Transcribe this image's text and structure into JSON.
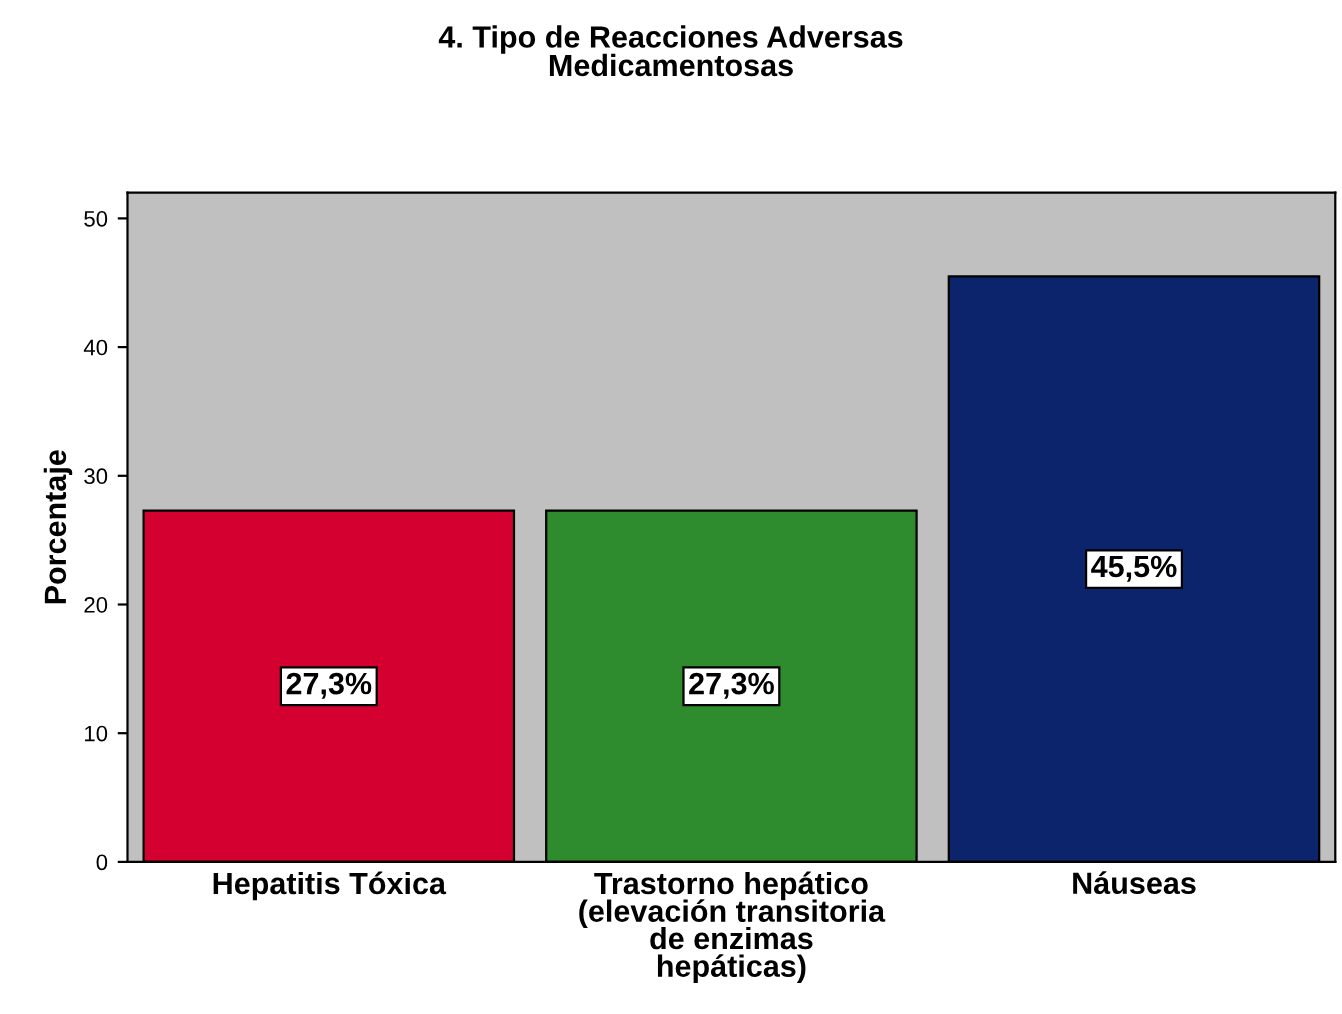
{
  "chart_data": {
    "type": "bar",
    "title": "4. Tipo de Reacciones Adversas\nMedicamentosas",
    "ylabel": "Porcentaje",
    "categories": [
      "Hepatitis Tóxica",
      "Trastorno hepático\n(elevación transitoria\nde enzimas\nhepáticas)",
      "Náuseas"
    ],
    "values": [
      27.3,
      27.3,
      45.5
    ],
    "colors": [
      "#d40030",
      "#2e8b2e",
      "#0b246b"
    ],
    "value_labels": [
      "27,3%",
      "27,3%",
      "45,5%"
    ],
    "ylim": [
      0,
      52
    ],
    "yticks": [
      0,
      10,
      20,
      30,
      40,
      50
    ],
    "grid": false,
    "legend": false
  }
}
